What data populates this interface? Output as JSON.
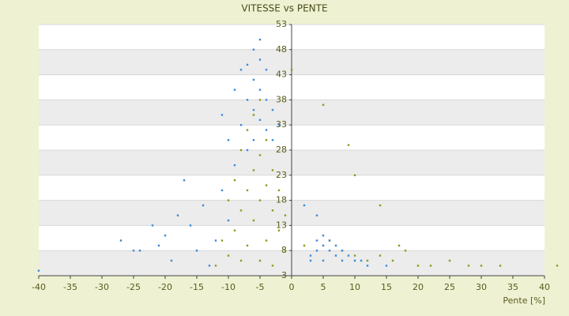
{
  "chart_data": {
    "type": "scatter",
    "title": "VITESSE vs PENTE",
    "x_label": "Pente [%]",
    "xlim": [
      -40,
      40
    ],
    "xticks": [
      -40,
      -35,
      -30,
      -25,
      -20,
      -15,
      -10,
      -5,
      0,
      5,
      10,
      15,
      20,
      25,
      30,
      35,
      40
    ],
    "ylim": [
      3,
      53
    ],
    "yticks": [
      3,
      8,
      13,
      18,
      23,
      28,
      33,
      38,
      43,
      48,
      53
    ],
    "grid": true,
    "series": [
      {
        "color": "#8c9a1c",
        "x": [
          -12,
          -11,
          -10,
          -10,
          -9,
          -9,
          -8,
          -8,
          -8,
          -7,
          -7,
          -7,
          -6,
          -6,
          -6,
          -5,
          -5,
          -5,
          -5,
          -4,
          -4,
          -4,
          -3,
          -3,
          -3,
          -2,
          -2,
          -1,
          -1,
          0,
          5,
          9,
          10,
          14,
          2,
          6,
          8,
          10,
          12,
          14,
          16,
          18,
          20,
          22,
          25,
          28,
          30,
          33,
          42,
          17
        ],
        "values": [
          5,
          10,
          18,
          7,
          22,
          12,
          28,
          16,
          6,
          32,
          20,
          9,
          35,
          24,
          14,
          38,
          27,
          18,
          6,
          30,
          21,
          10,
          24,
          16,
          5,
          20,
          12,
          15,
          8,
          44,
          37,
          29,
          23,
          17,
          9,
          10,
          8,
          7,
          6,
          7,
          6,
          8,
          5,
          5,
          6,
          5,
          5,
          5,
          5,
          9
        ]
      },
      {
        "color": "#3a8ad8",
        "x": [
          -40,
          -27,
          -25,
          -24,
          -22,
          -21,
          -20,
          -19,
          -18,
          -17,
          -16,
          -15,
          -14,
          -13,
          -12,
          -11,
          -11,
          -10,
          -10,
          -9,
          -9,
          -8,
          -8,
          -7,
          -7,
          -7,
          -6,
          -6,
          -6,
          -6,
          -5,
          -5,
          -5,
          -5,
          -4,
          -4,
          -4,
          -3,
          -3,
          -2,
          3,
          4,
          5,
          6,
          7,
          8,
          9,
          10,
          11,
          12,
          4,
          5,
          6,
          7,
          8,
          3,
          5,
          2,
          4,
          15
        ],
        "values": [
          4,
          10,
          8,
          8,
          13,
          9,
          11,
          6,
          15,
          22,
          13,
          8,
          17,
          5,
          10,
          20,
          35,
          14,
          30,
          40,
          25,
          44,
          33,
          45,
          38,
          28,
          48,
          42,
          36,
          30,
          50,
          46,
          40,
          34,
          44,
          38,
          32,
          36,
          30,
          33,
          7,
          8,
          9,
          8,
          7,
          6,
          7,
          6,
          6,
          5,
          10,
          11,
          10,
          9,
          8,
          6,
          6,
          17,
          15,
          5
        ]
      }
    ]
  }
}
